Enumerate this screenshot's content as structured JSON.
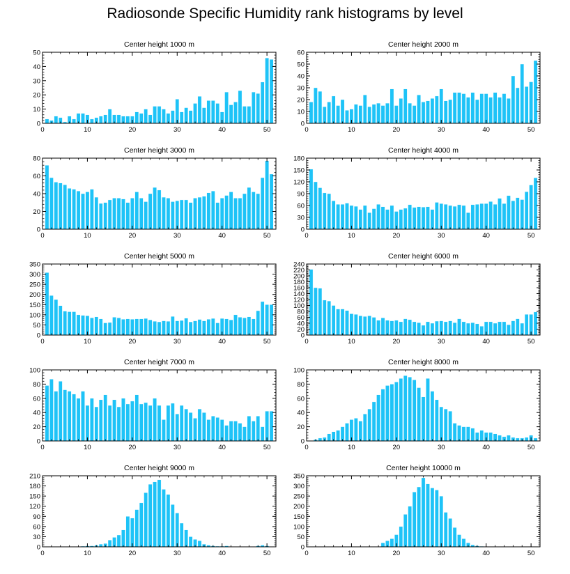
{
  "title": "Radiosonde Specific Humidity rank histograms by level",
  "colors": {
    "bar": "#1ec3f7",
    "bar_edge": "#ffffff",
    "axis": "#000000"
  },
  "chart_data": [
    {
      "type": "bar",
      "title": "Center height 1000 m",
      "xlabel": "",
      "ylabel": "",
      "xlim": [
        0,
        52
      ],
      "ylim": [
        0,
        50
      ],
      "yticks": [
        0,
        10,
        20,
        30,
        40,
        50
      ],
      "xticks": [
        0,
        10,
        20,
        30,
        40,
        50
      ],
      "values": [
        3,
        2,
        5,
        4,
        1,
        5,
        3,
        7,
        7,
        6,
        3,
        4,
        5,
        6,
        10,
        6,
        6,
        5,
        5,
        5,
        8,
        7,
        10,
        6,
        12,
        12,
        10,
        7,
        9,
        17,
        8,
        11,
        9,
        14,
        19,
        11,
        16,
        16,
        14,
        8,
        22,
        13,
        15,
        23,
        12,
        12,
        22,
        21,
        29,
        46,
        45
      ]
    },
    {
      "type": "bar",
      "title": "Center height 2000 m",
      "xlabel": "",
      "ylabel": "",
      "xlim": [
        0,
        52
      ],
      "ylim": [
        0,
        60
      ],
      "yticks": [
        0,
        10,
        20,
        30,
        40,
        50,
        60
      ],
      "xticks": [
        0,
        10,
        20,
        30,
        40,
        50
      ],
      "values": [
        18,
        30,
        27,
        14,
        18,
        23,
        15,
        20,
        11,
        12,
        16,
        15,
        24,
        14,
        16,
        17,
        15,
        17,
        29,
        15,
        21,
        29,
        17,
        15,
        24,
        18,
        19,
        21,
        23,
        29,
        19,
        20,
        26,
        26,
        25,
        22,
        26,
        20,
        25,
        25,
        22,
        26,
        22,
        25,
        21,
        40,
        30,
        50,
        31,
        35,
        53
      ]
    },
    {
      "type": "bar",
      "title": "Center height 3000 m",
      "xlabel": "",
      "ylabel": "",
      "xlim": [
        0,
        52
      ],
      "ylim": [
        0,
        80
      ],
      "yticks": [
        0,
        20,
        40,
        60,
        80
      ],
      "xticks": [
        0,
        10,
        20,
        30,
        40,
        50
      ],
      "values": [
        72,
        58,
        53,
        52,
        50,
        46,
        45,
        43,
        40,
        42,
        45,
        36,
        29,
        30,
        33,
        35,
        35,
        34,
        30,
        35,
        42,
        35,
        31,
        40,
        47,
        44,
        36,
        35,
        31,
        32,
        33,
        33,
        30,
        35,
        36,
        37,
        41,
        43,
        30,
        35,
        38,
        42,
        35,
        35,
        40,
        47,
        42,
        40,
        58,
        77,
        62
      ]
    },
    {
      "type": "bar",
      "title": "Center height 4000 m",
      "xlabel": "",
      "ylabel": "",
      "xlim": [
        0,
        52
      ],
      "ylim": [
        0,
        180
      ],
      "yticks": [
        0,
        30,
        60,
        90,
        120,
        150,
        180
      ],
      "xticks": [
        0,
        10,
        20,
        30,
        40,
        50
      ],
      "values": [
        152,
        120,
        105,
        92,
        90,
        72,
        63,
        63,
        66,
        60,
        58,
        50,
        60,
        42,
        52,
        63,
        57,
        50,
        60,
        45,
        50,
        53,
        62,
        55,
        57,
        56,
        57,
        50,
        68,
        65,
        63,
        60,
        58,
        62,
        60,
        42,
        62,
        63,
        65,
        65,
        70,
        63,
        78,
        65,
        85,
        72,
        80,
        75,
        95,
        112,
        130
      ]
    },
    {
      "type": "bar",
      "title": "Center height 5000 m",
      "xlabel": "",
      "ylabel": "",
      "xlim": [
        0,
        52
      ],
      "ylim": [
        0,
        350
      ],
      "yticks": [
        0,
        50,
        100,
        150,
        200,
        250,
        300,
        350
      ],
      "xticks": [
        0,
        10,
        20,
        30,
        40,
        50
      ],
      "values": [
        308,
        195,
        175,
        145,
        118,
        115,
        115,
        100,
        97,
        95,
        85,
        90,
        80,
        60,
        62,
        88,
        85,
        78,
        80,
        78,
        80,
        80,
        82,
        75,
        68,
        65,
        70,
        68,
        92,
        70,
        72,
        83,
        65,
        70,
        77,
        70,
        78,
        82,
        60,
        82,
        80,
        75,
        100,
        88,
        85,
        90,
        80,
        120,
        165,
        150,
        150
      ]
    },
    {
      "type": "bar",
      "title": "Center height 6000 m",
      "xlabel": "",
      "ylabel": "",
      "xlim": [
        0,
        52
      ],
      "ylim": [
        0,
        240
      ],
      "yticks": [
        0,
        20,
        40,
        60,
        80,
        100,
        120,
        140,
        160,
        180,
        200,
        220,
        240
      ],
      "xticks": [
        0,
        10,
        20,
        30,
        40,
        50
      ],
      "values": [
        222,
        160,
        158,
        118,
        115,
        100,
        88,
        88,
        83,
        72,
        70,
        65,
        63,
        65,
        60,
        50,
        58,
        50,
        48,
        50,
        45,
        55,
        52,
        45,
        42,
        33,
        45,
        40,
        47,
        48,
        45,
        48,
        42,
        55,
        45,
        40,
        42,
        38,
        30,
        45,
        45,
        40,
        45,
        45,
        35,
        48,
        55,
        40,
        70,
        70,
        78
      ]
    },
    {
      "type": "bar",
      "title": "Center height 7000 m",
      "xlabel": "",
      "ylabel": "",
      "xlim": [
        0,
        52
      ],
      "ylim": [
        0,
        100
      ],
      "yticks": [
        0,
        20,
        40,
        60,
        80,
        100
      ],
      "xticks": [
        0,
        10,
        20,
        30,
        40,
        50
      ],
      "values": [
        78,
        87,
        70,
        84,
        72,
        70,
        66,
        60,
        70,
        50,
        60,
        48,
        58,
        65,
        50,
        58,
        48,
        60,
        52,
        56,
        65,
        52,
        54,
        50,
        60,
        50,
        30,
        50,
        53,
        38,
        50,
        45,
        40,
        32,
        45,
        40,
        30,
        35,
        33,
        30,
        22,
        28,
        28,
        25,
        20,
        35,
        28,
        35,
        20,
        42,
        42
      ]
    },
    {
      "type": "bar",
      "title": "Center height 8000 m",
      "xlabel": "",
      "ylabel": "",
      "xlim": [
        0,
        52
      ],
      "ylim": [
        0,
        100
      ],
      "yticks": [
        0,
        20,
        40,
        60,
        80,
        100
      ],
      "xticks": [
        0,
        10,
        20,
        30,
        40,
        50
      ],
      "values": [
        0,
        2,
        4,
        5,
        10,
        13,
        15,
        20,
        25,
        30,
        32,
        28,
        38,
        45,
        55,
        65,
        73,
        78,
        80,
        83,
        88,
        92,
        90,
        86,
        75,
        62,
        88,
        70,
        58,
        48,
        45,
        42,
        25,
        22,
        20,
        20,
        18,
        12,
        15,
        12,
        12,
        10,
        8,
        6,
        8,
        5,
        4,
        4,
        5,
        8,
        4
      ]
    },
    {
      "type": "bar",
      "title": "Center height 9000 m",
      "xlabel": "",
      "ylabel": "",
      "xlim": [
        0,
        52
      ],
      "ylim": [
        0,
        210
      ],
      "yticks": [
        0,
        30,
        60,
        90,
        120,
        150,
        180,
        210
      ],
      "xticks": [
        0,
        10,
        20,
        30,
        40,
        50
      ],
      "values": [
        0,
        0,
        0,
        0,
        0,
        0,
        0,
        0,
        2,
        3,
        3,
        5,
        8,
        10,
        20,
        28,
        35,
        50,
        90,
        85,
        110,
        130,
        160,
        185,
        192,
        198,
        170,
        155,
        125,
        100,
        70,
        50,
        30,
        22,
        18,
        8,
        5,
        3,
        2,
        2,
        3,
        1,
        1,
        1,
        1,
        1,
        1,
        3,
        5,
        3,
        1
      ]
    },
    {
      "type": "bar",
      "title": "Center height 10000 m",
      "xlabel": "",
      "ylabel": "",
      "xlim": [
        0,
        52
      ],
      "ylim": [
        0,
        350
      ],
      "yticks": [
        0,
        50,
        100,
        150,
        200,
        250,
        300,
        350
      ],
      "xticks": [
        0,
        10,
        20,
        30,
        40,
        50
      ],
      "values": [
        0,
        0,
        0,
        0,
        0,
        0,
        0,
        0,
        0,
        0,
        0,
        0,
        0,
        0,
        0,
        0,
        20,
        30,
        40,
        60,
        100,
        160,
        200,
        270,
        295,
        340,
        310,
        290,
        280,
        250,
        170,
        140,
        95,
        60,
        40,
        20,
        10,
        5,
        3,
        1,
        0,
        0,
        0,
        0,
        0,
        0,
        0,
        0,
        0,
        0,
        0
      ]
    }
  ]
}
